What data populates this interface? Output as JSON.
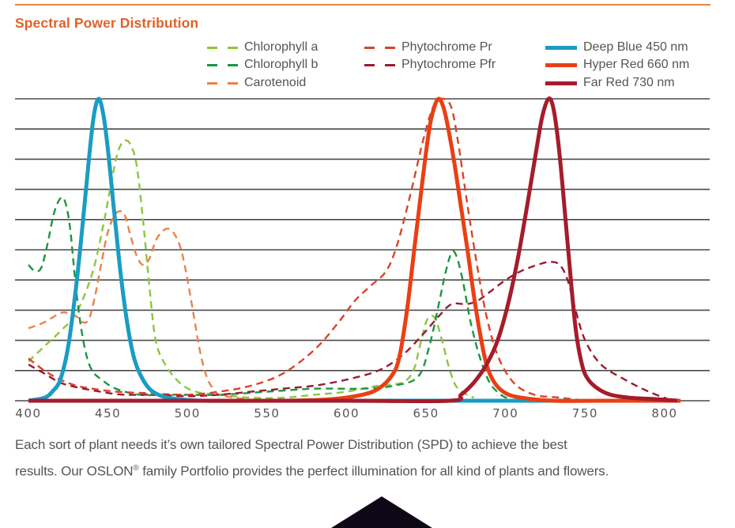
{
  "header": {
    "title": "Spectral Power Distribution"
  },
  "caption": {
    "line1": "Each sort of plant needs it’s own tailored Spectral Power Distribution (SPD) to achieve the best",
    "line2_before_sup": "results. Our OSLON",
    "line2_sup": "®",
    "line2_after_sup": " family Portfolio provides the perfect illumination for all kind of plants and flowers."
  },
  "colors": {
    "title": "#e0622a",
    "rule": "#d9884a",
    "grid": "#4a4a4a",
    "text": "#555555",
    "chlorophyll_a": "#8dc63f",
    "chlorophyll_b": "#1a9641",
    "carotenoid": "#e8834a",
    "phytochrome_pr": "#d8452a",
    "phytochrome_pfr": "#9b1b30",
    "deep_blue": "#1a9cc4",
    "hyper_red": "#ea3f14",
    "far_red": "#a51c2b"
  },
  "chart_data": {
    "type": "line",
    "title": "Spectral Power Distribution",
    "xlabel": "",
    "ylabel": "",
    "xlim": [
      400,
      810
    ],
    "ylim": [
      0,
      1.0
    ],
    "x_ticks": [
      400,
      450,
      500,
      550,
      600,
      650,
      700,
      750,
      800
    ],
    "y_gridlines": [
      0.1,
      0.2,
      0.3,
      0.4,
      0.5,
      0.6,
      0.7,
      0.8,
      0.9,
      1.0
    ],
    "grid": true,
    "legend": [
      {
        "label": "Chlorophyll a",
        "key": "chlorophyll_a",
        "style": "dashed"
      },
      {
        "label": "Chlorophyll b",
        "key": "chlorophyll_b",
        "style": "dashed"
      },
      {
        "label": "Carotenoid",
        "key": "carotenoid",
        "style": "dashed"
      },
      {
        "label": "Phytochrome Pr",
        "key": "phytochrome_pr",
        "style": "dashed"
      },
      {
        "label": "Phytochrome Pfr",
        "key": "phytochrome_pfr",
        "style": "dashed"
      },
      {
        "label": "Deep Blue 450 nm",
        "key": "deep_blue",
        "style": "solid"
      },
      {
        "label": "Hyper Red 660 nm",
        "key": "hyper_red",
        "style": "solid"
      },
      {
        "label": "Far Red 730 nm",
        "key": "far_red",
        "style": "solid"
      }
    ],
    "legend_placement": "top",
    "series": [
      {
        "name": "Chlorophyll a",
        "key": "chlorophyll_a",
        "style": "dashed",
        "x": [
          400,
          410,
          420,
          430,
          440,
          447,
          452,
          456,
          460,
          464,
          468,
          472,
          476,
          480,
          486,
          495,
          505,
          520,
          540,
          560,
          580,
          600,
          620,
          635,
          642,
          646,
          650,
          653,
          656,
          660,
          665,
          670,
          680
        ],
        "y": [
          0.13,
          0.18,
          0.23,
          0.29,
          0.42,
          0.58,
          0.72,
          0.82,
          0.86,
          0.85,
          0.78,
          0.6,
          0.38,
          0.2,
          0.12,
          0.06,
          0.03,
          0.02,
          0.01,
          0.01,
          0.02,
          0.03,
          0.05,
          0.06,
          0.1,
          0.18,
          0.26,
          0.28,
          0.27,
          0.2,
          0.1,
          0.04,
          0.01
        ]
      },
      {
        "name": "Chlorophyll b",
        "key": "chlorophyll_b",
        "style": "dashed",
        "x": [
          400,
          404,
          408,
          412,
          416,
          420,
          423,
          426,
          429,
          432,
          436,
          440,
          446,
          455,
          470,
          490,
          520,
          550,
          580,
          610,
          630,
          645,
          652,
          658,
          662,
          666,
          669,
          673,
          678,
          684,
          690,
          697,
          705
        ],
        "y": [
          0.45,
          0.43,
          0.44,
          0.52,
          0.62,
          0.67,
          0.66,
          0.58,
          0.42,
          0.28,
          0.16,
          0.1,
          0.07,
          0.04,
          0.02,
          0.02,
          0.02,
          0.03,
          0.04,
          0.04,
          0.05,
          0.08,
          0.18,
          0.32,
          0.42,
          0.49,
          0.48,
          0.4,
          0.26,
          0.14,
          0.06,
          0.02,
          0.0
        ]
      },
      {
        "name": "Carotenoid",
        "key": "carotenoid",
        "style": "dashed",
        "x": [
          400,
          410,
          420,
          425,
          430,
          434,
          438,
          442,
          446,
          450,
          455,
          460,
          464,
          468,
          472,
          476,
          480,
          484,
          488,
          492,
          496,
          500,
          504,
          508,
          512,
          516,
          520,
          530,
          545
        ],
        "y": [
          0.24,
          0.26,
          0.29,
          0.29,
          0.28,
          0.26,
          0.27,
          0.35,
          0.46,
          0.56,
          0.62,
          0.62,
          0.55,
          0.48,
          0.45,
          0.47,
          0.53,
          0.56,
          0.57,
          0.55,
          0.5,
          0.4,
          0.28,
          0.16,
          0.08,
          0.04,
          0.02,
          0.01,
          0.0
        ]
      },
      {
        "name": "Phytochrome Pr",
        "key": "phytochrome_pr",
        "style": "dashed",
        "x": [
          400,
          410,
          420,
          430,
          440,
          455,
          475,
          500,
          520,
          540,
          560,
          580,
          595,
          605,
          615,
          625,
          632,
          640,
          648,
          655,
          661,
          666,
          670,
          674,
          678,
          683,
          688,
          695,
          705,
          718,
          735,
          750
        ],
        "y": [
          0.14,
          0.1,
          0.07,
          0.05,
          0.04,
          0.03,
          0.025,
          0.02,
          0.03,
          0.05,
          0.09,
          0.17,
          0.26,
          0.33,
          0.38,
          0.43,
          0.52,
          0.68,
          0.86,
          0.98,
          1.0,
          0.97,
          0.86,
          0.72,
          0.58,
          0.42,
          0.28,
          0.15,
          0.06,
          0.02,
          0.01,
          0.0
        ]
      },
      {
        "name": "Phytochrome Pfr",
        "key": "phytochrome_pfr",
        "style": "dashed",
        "x": [
          400,
          410,
          420,
          430,
          445,
          460,
          480,
          500,
          520,
          540,
          560,
          580,
          600,
          620,
          635,
          648,
          658,
          666,
          675,
          682,
          690,
          700,
          710,
          720,
          728,
          734,
          739,
          744,
          750,
          760,
          775,
          790,
          805
        ],
        "y": [
          0.12,
          0.09,
          0.06,
          0.045,
          0.03,
          0.02,
          0.02,
          0.015,
          0.02,
          0.03,
          0.04,
          0.05,
          0.07,
          0.1,
          0.15,
          0.22,
          0.28,
          0.32,
          0.32,
          0.33,
          0.36,
          0.4,
          0.43,
          0.45,
          0.46,
          0.45,
          0.4,
          0.3,
          0.2,
          0.12,
          0.07,
          0.03,
          0.0
        ]
      },
      {
        "name": "Deep Blue 450 nm",
        "key": "deep_blue",
        "style": "solid",
        "x": [
          400,
          410,
          415,
          420,
          425,
          430,
          434,
          438,
          441,
          444,
          447,
          450,
          454,
          458,
          462,
          466,
          470,
          476,
          484,
          495,
          510,
          540,
          600,
          660,
          700,
          740
        ],
        "y": [
          0.0,
          0.01,
          0.03,
          0.07,
          0.18,
          0.38,
          0.58,
          0.8,
          0.94,
          1.0,
          0.95,
          0.83,
          0.62,
          0.42,
          0.26,
          0.15,
          0.09,
          0.04,
          0.015,
          0.005,
          0.0,
          0.0,
          0.0,
          0.0,
          0.0,
          0.0
        ]
      },
      {
        "name": "Hyper Red 660 nm",
        "key": "hyper_red",
        "style": "solid",
        "x": [
          500,
          560,
          590,
          610,
          620,
          628,
          633,
          638,
          643,
          648,
          652,
          655,
          658,
          661,
          664,
          668,
          672,
          676,
          680,
          684,
          688,
          693,
          700,
          710,
          730,
          760,
          810
        ],
        "y": [
          0.0,
          0.0,
          0.005,
          0.02,
          0.04,
          0.08,
          0.14,
          0.3,
          0.52,
          0.74,
          0.9,
          0.97,
          1.0,
          0.97,
          0.9,
          0.78,
          0.64,
          0.5,
          0.35,
          0.22,
          0.12,
          0.06,
          0.025,
          0.01,
          0.0,
          0.0,
          0.0
        ]
      },
      {
        "name": "Far Red 730 nm",
        "key": "far_red",
        "style": "solid",
        "x": [
          400,
          500,
          600,
          665,
          672,
          680,
          688,
          695,
          702,
          708,
          714,
          719,
          723,
          727,
          730,
          733,
          736,
          740,
          744,
          748,
          752,
          758,
          766,
          778,
          795,
          808
        ],
        "y": [
          0.0,
          0.0,
          0.0,
          0.0,
          0.02,
          0.06,
          0.12,
          0.2,
          0.33,
          0.48,
          0.66,
          0.82,
          0.94,
          1.0,
          0.97,
          0.86,
          0.7,
          0.46,
          0.24,
          0.12,
          0.07,
          0.04,
          0.02,
          0.01,
          0.005,
          0.0
        ]
      }
    ]
  }
}
